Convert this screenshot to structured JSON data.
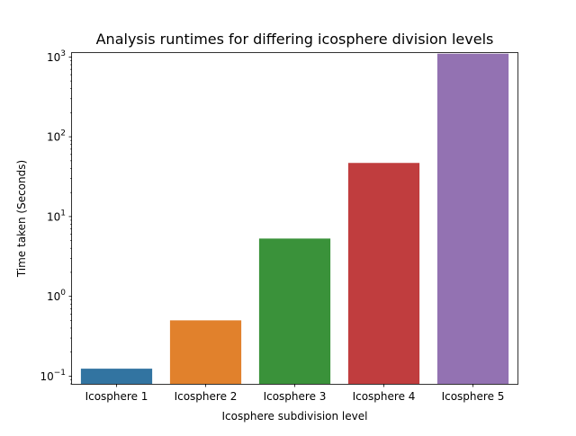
{
  "chart_data": {
    "type": "bar",
    "title": "Analysis runtimes for differing icosphere division levels",
    "xlabel": "Icosphere subdivision level",
    "ylabel": "Time taken (Seconds)",
    "yscale": "log",
    "ylim": [
      0.08,
      1150
    ],
    "categories": [
      "Icosphere 1",
      "Icosphere 2",
      "Icosphere 3",
      "Icosphere 4",
      "Icosphere 5"
    ],
    "values": [
      0.124,
      0.5,
      5.3,
      47,
      1100
    ],
    "colors": [
      "#3274a1",
      "#e1812c",
      "#3a923a",
      "#c03d3e",
      "#9372b2"
    ],
    "y_ticks": [
      {
        "value": 0.1,
        "base": "10",
        "exp": "−1"
      },
      {
        "value": 1,
        "base": "10",
        "exp": "0"
      },
      {
        "value": 10,
        "base": "10",
        "exp": "1"
      },
      {
        "value": 100,
        "base": "10",
        "exp": "2"
      },
      {
        "value": 1000,
        "base": "10",
        "exp": "3"
      }
    ],
    "grid": false,
    "legend": "none"
  }
}
